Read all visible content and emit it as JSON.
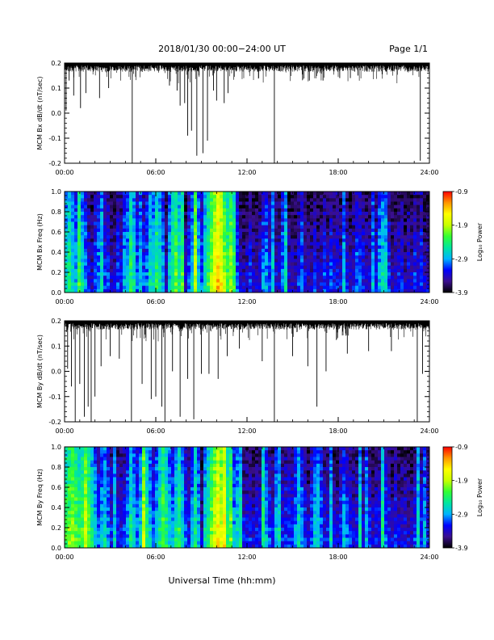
{
  "header": {
    "title": "2018/01/30   00:00−24:00 UT",
    "page": "Page 1/1"
  },
  "footer": {
    "xlabel": "Universal Time (hh:mm)"
  },
  "colors": {
    "trace": "#000000",
    "axis": "#000000",
    "colorbar_stops": [
      "#000000",
      "#3b0f8f",
      "#0000ff",
      "#00b4ff",
      "#00e6a0",
      "#32ff32",
      "#c8ff00",
      "#ffff00",
      "#ff9600",
      "#ff0000"
    ]
  },
  "chart_data": [
    {
      "type": "line",
      "name": "bx-timeseries",
      "ylabel": "MCM Bx dB/dt (nT/sec)",
      "ylim": [
        -0.2,
        0.2
      ],
      "yticks": [
        "0.2",
        "0.1",
        "0.0",
        "-0.1",
        "-0.2"
      ],
      "xticks": [
        "00:00",
        "06:00",
        "12:00",
        "18:00",
        "24:00"
      ],
      "xlim_hours": [
        0,
        24
      ],
      "baseline": 0.2,
      "spikes": [
        {
          "t": 0.1,
          "v": 0.01
        },
        {
          "t": 0.3,
          "v": 0.13
        },
        {
          "t": 0.6,
          "v": 0.07
        },
        {
          "t": 1.05,
          "v": 0.02
        },
        {
          "t": 1.4,
          "v": 0.08
        },
        {
          "t": 2.3,
          "v": 0.06
        },
        {
          "t": 2.9,
          "v": 0.1
        },
        {
          "t": 4.45,
          "v": -0.2
        },
        {
          "t": 6.9,
          "v": 0.11
        },
        {
          "t": 7.4,
          "v": 0.09
        },
        {
          "t": 7.6,
          "v": 0.03
        },
        {
          "t": 7.9,
          "v": 0.04
        },
        {
          "t": 8.1,
          "v": -0.09
        },
        {
          "t": 8.35,
          "v": -0.07
        },
        {
          "t": 8.7,
          "v": -0.17
        },
        {
          "t": 9.1,
          "v": -0.16
        },
        {
          "t": 9.4,
          "v": -0.11
        },
        {
          "t": 9.8,
          "v": 0.09
        },
        {
          "t": 10.0,
          "v": 0.05
        },
        {
          "t": 10.5,
          "v": 0.04
        },
        {
          "t": 10.75,
          "v": 0.08
        },
        {
          "t": 13.8,
          "v": -0.2
        },
        {
          "t": 16.1,
          "v": 0.13
        },
        {
          "t": 17.0,
          "v": 0.13
        },
        {
          "t": 18.1,
          "v": 0.14
        },
        {
          "t": 18.8,
          "v": 0.14
        },
        {
          "t": 19.3,
          "v": 0.15
        },
        {
          "t": 23.4,
          "v": -0.19
        }
      ]
    },
    {
      "type": "heatmap",
      "name": "bx-spectrogram",
      "ylabel": "MCM Bx Freq (Hz)",
      "ylim": [
        0.0,
        1.0
      ],
      "yticks": [
        "1.0",
        "0.8",
        "0.6",
        "0.4",
        "0.2",
        "0.0"
      ],
      "xticks": [
        "00:00",
        "06:00",
        "12:00",
        "18:00",
        "24:00"
      ],
      "xlim_hours": [
        0,
        24
      ],
      "colorbar": {
        "label": "Log₁₀ Power",
        "ticks": [
          "-0.9",
          "-1.9",
          "-2.9",
          "-3.9"
        ],
        "range": [
          -3.9,
          -0.9
        ]
      },
      "activity_hours": [
        {
          "t": 0.3,
          "w": 0.8,
          "level": 0.5
        },
        {
          "t": 1.1,
          "w": 0.5,
          "level": 0.45
        },
        {
          "t": 2.2,
          "w": 0.4,
          "level": 0.35
        },
        {
          "t": 4.4,
          "w": 0.4,
          "level": 0.55
        },
        {
          "t": 5.0,
          "w": 0.3,
          "level": 0.4
        },
        {
          "t": 5.6,
          "w": 0.3,
          "level": 0.45
        },
        {
          "t": 6.1,
          "w": 0.5,
          "level": 0.55
        },
        {
          "t": 7.3,
          "w": 0.6,
          "level": 0.6
        },
        {
          "t": 8.6,
          "w": 0.5,
          "level": 0.5
        },
        {
          "t": 9.4,
          "w": 0.3,
          "level": 0.45
        },
        {
          "t": 10.1,
          "w": 0.9,
          "level": 0.85
        },
        {
          "t": 11.2,
          "w": 0.3,
          "level": 0.4
        },
        {
          "t": 13.2,
          "w": 0.4,
          "level": 0.38
        },
        {
          "t": 14.4,
          "w": 0.3,
          "level": 0.35
        },
        {
          "t": 15.6,
          "w": 0.3,
          "level": 0.33
        },
        {
          "t": 17.6,
          "w": 0.2,
          "level": 0.32
        },
        {
          "t": 19.3,
          "w": 0.3,
          "level": 0.35
        }
      ]
    },
    {
      "type": "line",
      "name": "by-timeseries",
      "ylabel": "MCM By dB/dt (nT/sec)",
      "ylim": [
        -0.2,
        0.2
      ],
      "yticks": [
        "0.2",
        "0.1",
        "0.0",
        "-0.1",
        "-0.2"
      ],
      "xticks": [
        "00:00",
        "06:00",
        "12:00",
        "18:00",
        "24:00"
      ],
      "xlim_hours": [
        0,
        24
      ],
      "baseline": 0.2,
      "spikes": [
        {
          "t": 0.2,
          "v": 0.01
        },
        {
          "t": 0.45,
          "v": -0.06
        },
        {
          "t": 0.7,
          "v": -0.2
        },
        {
          "t": 1.0,
          "v": -0.05
        },
        {
          "t": 1.3,
          "v": -0.18
        },
        {
          "t": 1.55,
          "v": -0.14
        },
        {
          "t": 1.75,
          "v": -0.2
        },
        {
          "t": 2.0,
          "v": -0.1
        },
        {
          "t": 2.4,
          "v": 0.02
        },
        {
          "t": 3.0,
          "v": 0.06
        },
        {
          "t": 3.6,
          "v": 0.05
        },
        {
          "t": 4.4,
          "v": -0.2
        },
        {
          "t": 5.1,
          "v": -0.05
        },
        {
          "t": 5.7,
          "v": -0.11
        },
        {
          "t": 6.0,
          "v": -0.1
        },
        {
          "t": 6.4,
          "v": -0.14
        },
        {
          "t": 6.6,
          "v": -0.2
        },
        {
          "t": 7.1,
          "v": 0.0
        },
        {
          "t": 7.6,
          "v": -0.18
        },
        {
          "t": 8.1,
          "v": -0.03
        },
        {
          "t": 8.5,
          "v": -0.19
        },
        {
          "t": 9.0,
          "v": -0.01
        },
        {
          "t": 9.5,
          "v": -0.01
        },
        {
          "t": 10.1,
          "v": -0.03
        },
        {
          "t": 10.7,
          "v": 0.06
        },
        {
          "t": 11.5,
          "v": 0.09
        },
        {
          "t": 13.0,
          "v": 0.04
        },
        {
          "t": 13.8,
          "v": -0.2
        },
        {
          "t": 15.0,
          "v": 0.06
        },
        {
          "t": 16.0,
          "v": 0.02
        },
        {
          "t": 16.6,
          "v": -0.14
        },
        {
          "t": 17.2,
          "v": 0.0
        },
        {
          "t": 18.6,
          "v": 0.07
        },
        {
          "t": 20.0,
          "v": 0.08
        },
        {
          "t": 21.5,
          "v": 0.08
        },
        {
          "t": 23.2,
          "v": -0.2
        },
        {
          "t": 23.55,
          "v": -0.01
        }
      ]
    },
    {
      "type": "heatmap",
      "name": "by-spectrogram",
      "ylabel": "MCM By Freq (Hz)",
      "ylim": [
        0.0,
        1.0
      ],
      "yticks": [
        "1.0",
        "0.8",
        "0.6",
        "0.4",
        "0.2",
        "0.0"
      ],
      "xticks": [
        "00:00",
        "06:00",
        "12:00",
        "18:00",
        "24:00"
      ],
      "xlim_hours": [
        0,
        24
      ],
      "colorbar": {
        "label": "Log₁₀ Power",
        "ticks": [
          "-0.9",
          "-1.9",
          "-2.9",
          "-3.9"
        ],
        "range": [
          -3.9,
          -0.9
        ]
      },
      "activity_hours": [
        {
          "t": 0.5,
          "w": 1.2,
          "level": 0.65
        },
        {
          "t": 1.4,
          "w": 0.6,
          "level": 0.7
        },
        {
          "t": 2.6,
          "w": 0.5,
          "level": 0.45
        },
        {
          "t": 4.4,
          "w": 0.4,
          "level": 0.5
        },
        {
          "t": 5.3,
          "w": 0.6,
          "level": 0.55
        },
        {
          "t": 6.5,
          "w": 0.6,
          "level": 0.6
        },
        {
          "t": 7.5,
          "w": 0.5,
          "level": 0.55
        },
        {
          "t": 8.6,
          "w": 0.4,
          "level": 0.5
        },
        {
          "t": 10.1,
          "w": 0.9,
          "level": 0.8
        },
        {
          "t": 11.3,
          "w": 0.4,
          "level": 0.45
        },
        {
          "t": 13.2,
          "w": 0.4,
          "level": 0.4
        },
        {
          "t": 15.4,
          "w": 0.5,
          "level": 0.42
        },
        {
          "t": 16.6,
          "w": 0.5,
          "level": 0.45
        },
        {
          "t": 18.4,
          "w": 0.4,
          "level": 0.38
        },
        {
          "t": 21.0,
          "w": 0.4,
          "level": 0.35
        }
      ]
    }
  ]
}
